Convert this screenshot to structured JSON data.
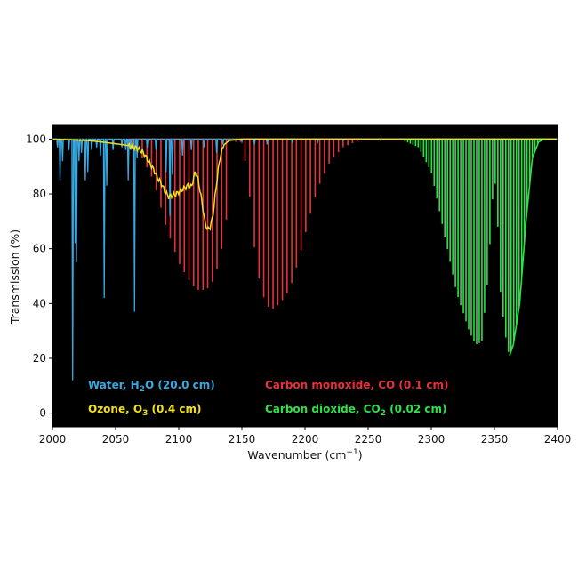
{
  "chart_data": {
    "type": "line",
    "title": "",
    "xlabel": "Wavenumber  (cm",
    "xlabel_sup": "−1",
    "xlabel_close": ")",
    "ylabel": "Transmission (%)",
    "xlim": [
      2000,
      2400
    ],
    "ylim": [
      -5,
      105
    ],
    "xticks": [
      "2000",
      "2050",
      "2100",
      "2150",
      "2200",
      "2250",
      "2300",
      "2350",
      "2400"
    ],
    "yticks": [
      "0",
      "20",
      "40",
      "60",
      "80",
      "100"
    ],
    "background": "#000000",
    "legend": [
      {
        "key": "water",
        "pre": "Water, H",
        "sub": "2",
        "post": "O (20.0 cm)",
        "color": "#3aa8df"
      },
      {
        "key": "ozone",
        "pre": "Ozone, O",
        "sub": "3",
        "post": " (0.4 cm)",
        "color": "#f2e11a"
      },
      {
        "key": "co",
        "pre": "Carbon monoxide, CO (0.1 cm)",
        "sub": "",
        "post": "",
        "color": "#e8303a"
      },
      {
        "key": "co2",
        "pre": "Carbon dioxide, CO",
        "sub": "2",
        "post": " (0.02 cm)",
        "color": "#2ee04a"
      }
    ],
    "series": [
      {
        "key": "co",
        "color": "#e8303a",
        "style": "dense-lines",
        "envelope_x": [
          2060,
          2070,
          2080,
          2090,
          2100,
          2110,
          2115,
          2120,
          2125,
          2130,
          2135,
          2140,
          2145,
          2150,
          2155,
          2160,
          2165,
          2170,
          2175,
          2180,
          2185,
          2190,
          2195,
          2200,
          2205,
          2210,
          2220,
          2230,
          2240,
          2250
        ],
        "envelope_min": [
          98,
          94,
          85,
          68,
          55,
          47,
          45,
          45,
          46,
          52,
          62,
          78,
          99,
          99,
          85,
          60,
          45,
          39,
          38,
          40,
          43,
          48,
          56,
          65,
          74,
          82,
          92,
          97,
          99,
          100
        ],
        "gap": [
          2141,
          2145
        ]
      },
      {
        "key": "co2",
        "color": "#2ee04a",
        "style": "dense-lines",
        "envelope_x": [
          2275,
          2290,
          2300,
          2310,
          2320,
          2330,
          2335,
          2340,
          2345,
          2348,
          2350,
          2352,
          2355,
          2360,
          2362,
          2365,
          2370,
          2375,
          2380,
          2385,
          2390
        ],
        "envelope_min": [
          100,
          97,
          88,
          66,
          44,
          30,
          25,
          26,
          50,
          75,
          87,
          76,
          42,
          24,
          21,
          25,
          40,
          70,
          93,
          99,
          100
        ]
      },
      {
        "key": "water",
        "color": "#3aa8df",
        "style": "line",
        "baseline": 100,
        "lines": [
          [
            2004,
            97
          ],
          [
            2006,
            85
          ],
          [
            2008,
            92
          ],
          [
            2013,
            96
          ],
          [
            2016,
            12
          ],
          [
            2018,
            62
          ],
          [
            2019,
            55
          ],
          [
            2021,
            92
          ],
          [
            2023,
            95
          ],
          [
            2026,
            85
          ],
          [
            2028,
            88
          ],
          [
            2031,
            96
          ],
          [
            2035,
            97
          ],
          [
            2038,
            94
          ],
          [
            2041,
            42
          ],
          [
            2043,
            83
          ],
          [
            2048,
            96
          ],
          [
            2055,
            97
          ],
          [
            2058,
            96
          ],
          [
            2060,
            85
          ],
          [
            2062,
            96
          ],
          [
            2065,
            37
          ],
          [
            2067,
            93
          ],
          [
            2075,
            97
          ],
          [
            2082,
            96
          ],
          [
            2090,
            88
          ],
          [
            2093,
            72
          ],
          [
            2095,
            87
          ],
          [
            2103,
            94
          ],
          [
            2110,
            96
          ],
          [
            2120,
            97
          ],
          [
            2130,
            95
          ],
          [
            2135,
            98
          ],
          [
            2150,
            99
          ],
          [
            2160,
            98
          ],
          [
            2170,
            98
          ],
          [
            2190,
            99
          ],
          [
            2210,
            99
          ],
          [
            2230,
            99.5
          ],
          [
            2260,
            99.5
          ]
        ]
      },
      {
        "key": "ozone",
        "color": "#f2e11a",
        "style": "line",
        "points": [
          [
            2000,
            100
          ],
          [
            2015,
            99.7
          ],
          [
            2030,
            99.4
          ],
          [
            2045,
            98.6
          ],
          [
            2055,
            98
          ],
          [
            2062,
            97.5
          ],
          [
            2068,
            96.5
          ],
          [
            2072,
            95
          ],
          [
            2076,
            92
          ],
          [
            2080,
            89
          ],
          [
            2083,
            86
          ],
          [
            2086,
            84
          ],
          [
            2089,
            81
          ],
          [
            2092,
            79
          ],
          [
            2095,
            79.5
          ],
          [
            2098,
            80
          ],
          [
            2101,
            81
          ],
          [
            2104,
            82
          ],
          [
            2107,
            83
          ],
          [
            2110,
            82.5
          ],
          [
            2113,
            88
          ],
          [
            2115,
            86
          ],
          [
            2117,
            81
          ],
          [
            2119,
            75
          ],
          [
            2121,
            69
          ],
          [
            2123,
            67
          ],
          [
            2125,
            68
          ],
          [
            2127,
            72
          ],
          [
            2129,
            80
          ],
          [
            2131,
            88
          ],
          [
            2133,
            94
          ],
          [
            2136,
            98
          ],
          [
            2140,
            99.5
          ],
          [
            2150,
            100
          ],
          [
            2400,
            100
          ]
        ]
      }
    ]
  }
}
